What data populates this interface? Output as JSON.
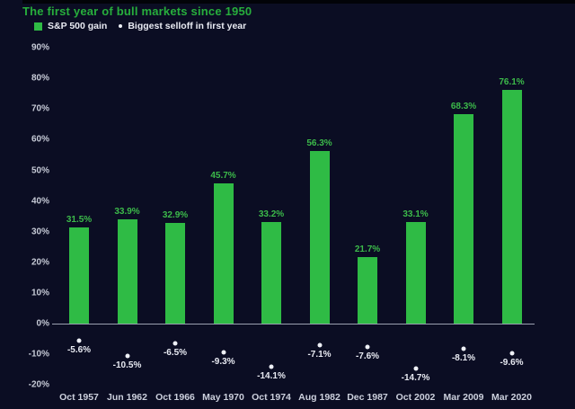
{
  "page": {
    "background_color": "#0b0d23",
    "top_strip_color": "#020308"
  },
  "header": {
    "title": "The first year of bull markets since 1950",
    "title_color": "#27ae3c"
  },
  "legend": {
    "gain_label": "S&P 500 gain",
    "selloff_label": "Biggest selloff in first year",
    "gain_color": "#2fbb45",
    "selloff_dot_color": "#eef0f6"
  },
  "chart_data": {
    "type": "bar",
    "title": "The first year of bull markets since 1950",
    "categories": [
      "Oct 1957",
      "Jun 1962",
      "Oct 1966",
      "May 1970",
      "Oct 1974",
      "Aug 1982",
      "Dec 1987",
      "Oct 2002",
      "Mar 2009",
      "Mar 2020"
    ],
    "series": [
      {
        "name": "S&P 500 gain",
        "type": "bar",
        "color": "#2fbb45",
        "values": [
          31.5,
          33.9,
          32.9,
          45.7,
          33.2,
          56.3,
          21.7,
          33.1,
          68.3,
          76.1
        ],
        "labels": [
          "31.5%",
          "33.9%",
          "32.9%",
          "45.7%",
          "33.2%",
          "56.3%",
          "21.7%",
          "33.1%",
          "68.3%",
          "76.1%"
        ]
      },
      {
        "name": "Biggest selloff in first year",
        "type": "scatter",
        "color": "#eef0f6",
        "values": [
          -5.6,
          -10.5,
          -6.5,
          -9.3,
          -14.1,
          -7.1,
          -7.6,
          -14.7,
          -8.1,
          -9.6
        ],
        "labels": [
          "-5.6%",
          "-10.5%",
          "-6.5%",
          "-9.3%",
          "-14.1%",
          "-7.1%",
          "-7.6%",
          "-14.7%",
          "-8.1%",
          "-9.6%"
        ]
      }
    ],
    "xlabel": "",
    "ylabel": "",
    "ylim": [
      -20,
      90
    ],
    "yticks": [
      "90%",
      "80%",
      "70%",
      "60%",
      "50%",
      "40%",
      "30%",
      "20%",
      "10%",
      "0%",
      "-10%",
      "-20%"
    ],
    "grid": false,
    "legend_position": "top-left"
  }
}
